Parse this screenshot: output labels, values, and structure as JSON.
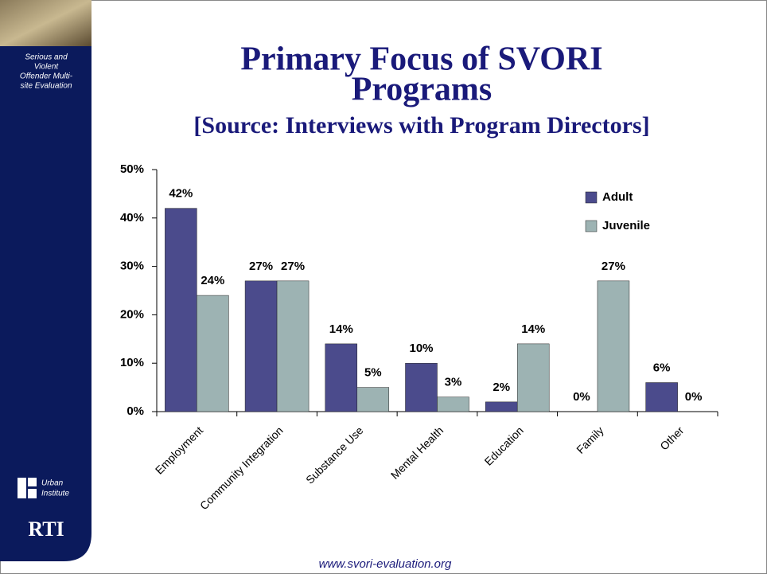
{
  "sidebar": {
    "caption": [
      "Serious and",
      "Violent",
      "Offender Multi-",
      "site Evaluation"
    ],
    "urban": [
      "Urban",
      "Institute"
    ],
    "rti": "RTI"
  },
  "footer": "www.svori-evaluation.org",
  "chart_data": {
    "type": "bar",
    "title": [
      "Primary Focus of SVORI",
      "Programs"
    ],
    "subtitle": "[Source: Interviews with Program Directors]",
    "categories": [
      "Employment",
      "Community Integration",
      "Substance Use",
      "Mental Health",
      "Education",
      "Family",
      "Other"
    ],
    "series": [
      {
        "name": "Adult",
        "color": "#4b4b8c",
        "values": [
          42,
          27,
          14,
          10,
          2,
          0,
          6
        ],
        "value_labels": [
          "42%",
          "27%",
          "14%",
          "10%",
          "2%",
          "0%",
          "6%"
        ]
      },
      {
        "name": "Juvenile",
        "color": "#9db3b3",
        "values": [
          24,
          27,
          5,
          3,
          14,
          27,
          0
        ],
        "value_labels": [
          "24%",
          "27%",
          "5%",
          "3%",
          "14%",
          "27%",
          "0%"
        ]
      }
    ],
    "ylim": [
      0,
      50
    ],
    "yticks": [
      {
        "value": 0,
        "label": "0%"
      },
      {
        "value": 10,
        "label": "10%"
      },
      {
        "value": 20,
        "label": "20%"
      },
      {
        "value": 30,
        "label": "30%"
      },
      {
        "value": 40,
        "label": "40%"
      },
      {
        "value": 50,
        "label": "50%"
      }
    ],
    "legend": "upper-right",
    "grid": false
  }
}
